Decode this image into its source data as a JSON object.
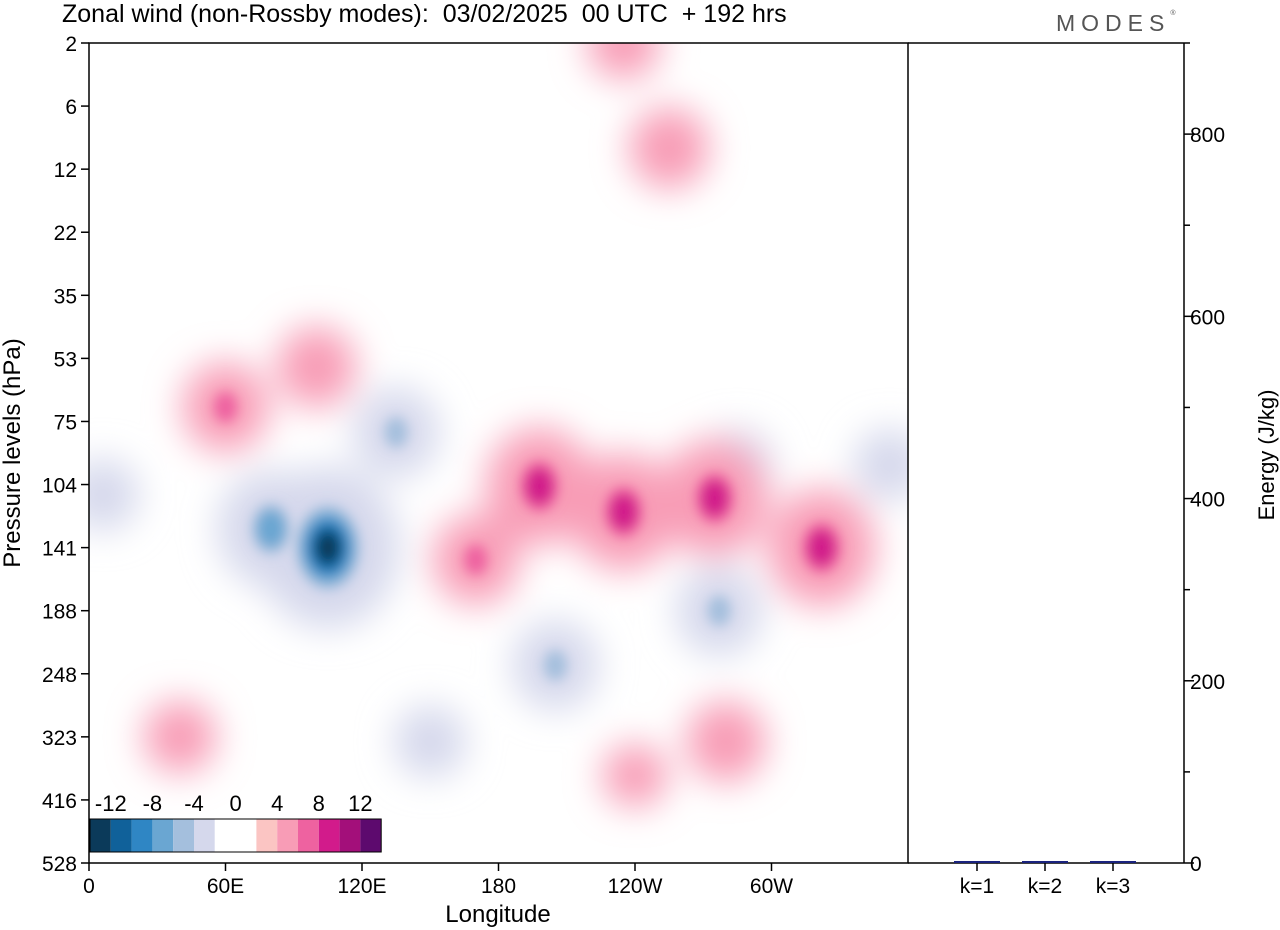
{
  "title": "Zonal wind (non-Rossby modes):  03/02/2025  00 UTC  + 192 hrs",
  "brand": "MODES",
  "brand_mark": "®",
  "chart_data": [
    {
      "type": "heatmap",
      "xlabel": "Longitude",
      "ylabel": "Pressure levels (hPa)",
      "x_ticks": [
        "0",
        "60E",
        "120E",
        "180",
        "120W",
        "60W"
      ],
      "x_tick_degrees": [
        0,
        60,
        120,
        180,
        240,
        300
      ],
      "xlim": [
        0,
        360
      ],
      "y_ticks": [
        "2",
        "6",
        "12",
        "22",
        "35",
        "53",
        "75",
        "104",
        "141",
        "188",
        "248",
        "323",
        "416",
        "528"
      ],
      "colorbar": {
        "labels": [
          "-12",
          "-8",
          "-4",
          "0",
          "4",
          "8",
          "12"
        ],
        "colors": [
          "#0b3a5a",
          "#10619a",
          "#2f86c4",
          "#6aa6d2",
          "#a4bfdd",
          "#d5d8ec",
          "#ffffff",
          "#ffffff",
          "#fbc5c3",
          "#f89cb6",
          "#ee62a0",
          "#d21b8b",
          "#a30f7a",
          "#5d0a6e"
        ]
      },
      "features": [
        {
          "lon": 105,
          "level": 141,
          "value": -14
        },
        {
          "lon": 80,
          "level": 130,
          "value": -9
        },
        {
          "lon": 135,
          "level": 80,
          "value": -6
        },
        {
          "lon": 6,
          "level": 110,
          "value": -4
        },
        {
          "lon": 205,
          "level": 240,
          "value": -6
        },
        {
          "lon": 277,
          "level": 188,
          "value": -6
        },
        {
          "lon": 285,
          "level": 95,
          "value": -4
        },
        {
          "lon": 352,
          "level": 95,
          "value": -4
        },
        {
          "lon": 150,
          "level": 330,
          "value": -4
        },
        {
          "lon": 60,
          "level": 70,
          "value": 6
        },
        {
          "lon": 100,
          "level": 56,
          "value": 5
        },
        {
          "lon": 198,
          "level": 105,
          "value": 9
        },
        {
          "lon": 235,
          "level": 120,
          "value": 9
        },
        {
          "lon": 275,
          "level": 112,
          "value": 9
        },
        {
          "lon": 322,
          "level": 141,
          "value": 9
        },
        {
          "lon": 170,
          "level": 150,
          "value": 6
        },
        {
          "lon": 280,
          "level": 330,
          "value": 5
        },
        {
          "lon": 235,
          "level": 2,
          "value": 4
        },
        {
          "lon": 255,
          "level": 10,
          "value": 5
        },
        {
          "lon": 40,
          "level": 323,
          "value": 4
        },
        {
          "lon": 240,
          "level": 380,
          "value": 3
        }
      ]
    },
    {
      "type": "bar",
      "categories": [
        "k=1",
        "k=2",
        "k=3"
      ],
      "values": [
        2,
        1,
        1
      ],
      "ylabel": "Energy (J/kg)",
      "ylim": [
        0,
        900
      ],
      "y_ticks": [
        0,
        200,
        400,
        600,
        800
      ],
      "bar_color": "#1a237e"
    }
  ]
}
